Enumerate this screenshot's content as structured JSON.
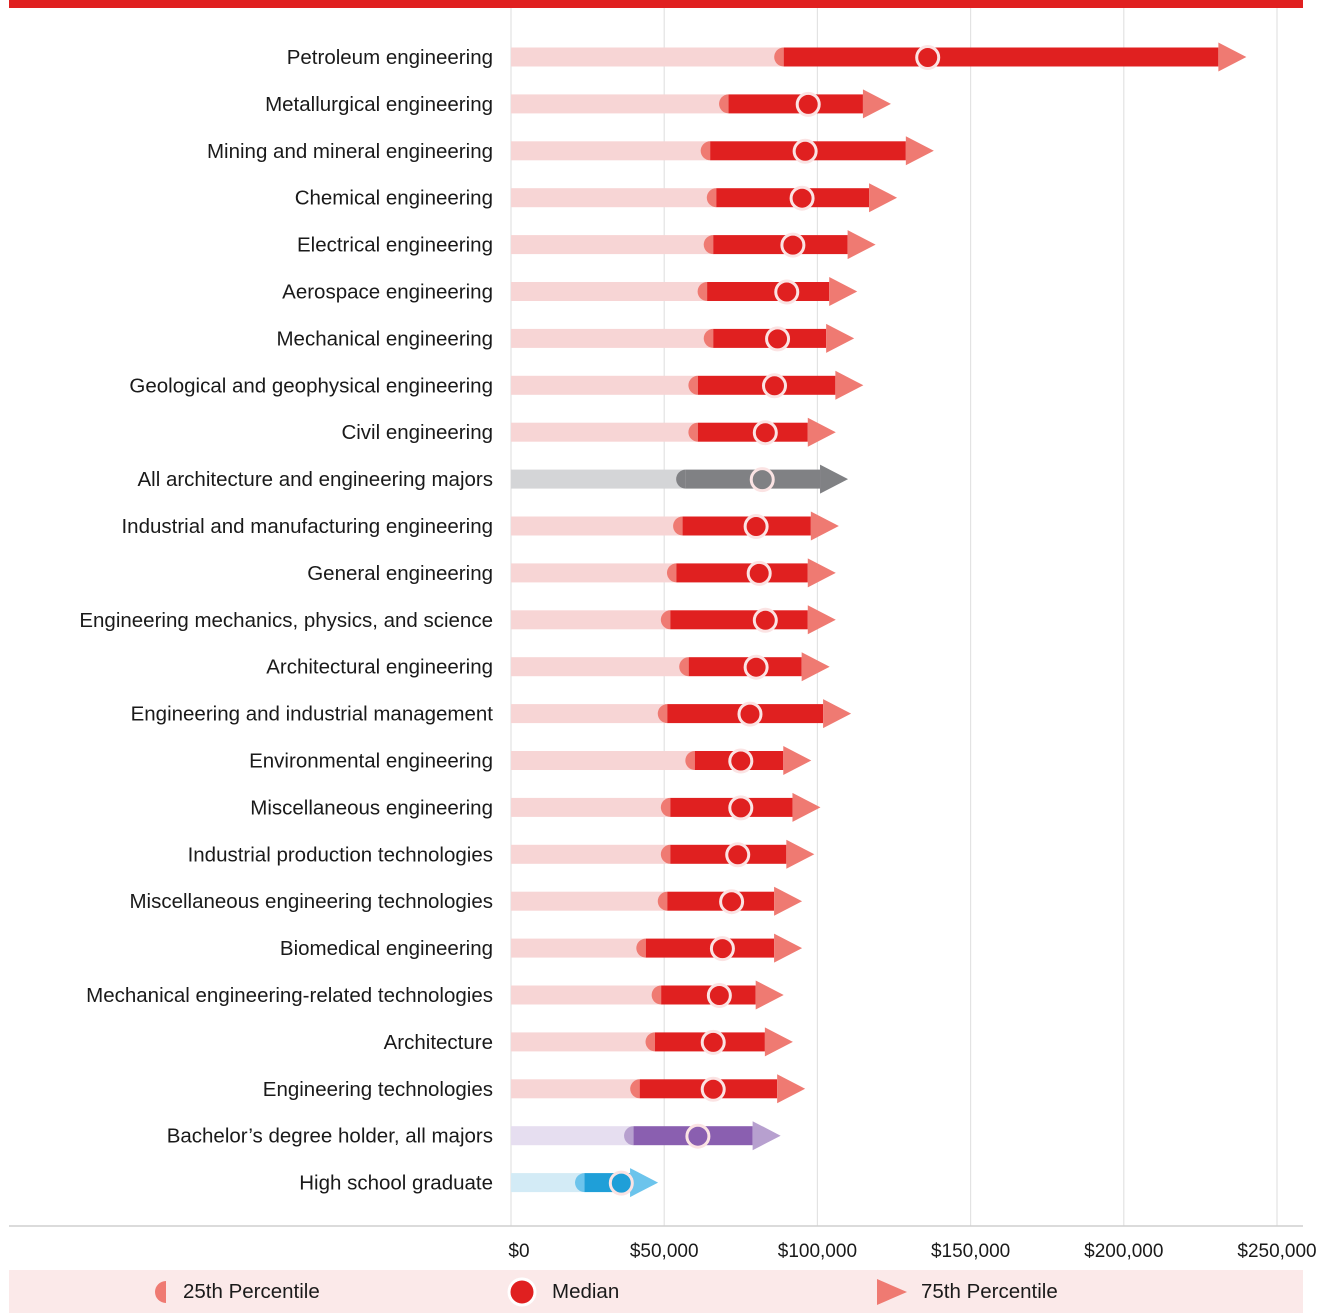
{
  "chart_data": {
    "type": "range-bar",
    "categories": [
      "Petroleum engineering",
      "Metallurgical engineering",
      "Mining and mineral engineering",
      "Chemical engineering",
      "Electrical engineering",
      "Aerospace engineering",
      "Mechanical engineering",
      "Geological and geophysical engineering",
      "Civil engineering",
      "All architecture and engineering majors",
      "Industrial and manufacturing engineering",
      "General engineering",
      "Engineering mechanics, physics, and science",
      "Architectural engineering",
      "Engineering and industrial management",
      "Environmental engineering",
      "Miscellaneous engineering",
      "Industrial production technologies",
      "Miscellaneous engineering technologies",
      "Biomedical engineering",
      "Mechanical engineering-related technologies",
      "Architecture",
      "Engineering technologies",
      "Bachelor’s degree holder, all majors",
      "High school graduate"
    ],
    "series": [
      {
        "name": "25th Percentile",
        "values": [
          89000,
          71000,
          65000,
          67000,
          66000,
          64000,
          66000,
          61000,
          61000,
          57000,
          56000,
          54000,
          52000,
          58000,
          51000,
          60000,
          52000,
          52000,
          51000,
          44000,
          49000,
          47000,
          42000,
          40000,
          24000
        ]
      },
      {
        "name": "Median",
        "values": [
          136000,
          97000,
          96000,
          95000,
          92000,
          90000,
          87000,
          86000,
          83000,
          82000,
          80000,
          81000,
          83000,
          80000,
          78000,
          75000,
          75000,
          74000,
          72000,
          69000,
          68000,
          66000,
          66000,
          61000,
          36000
        ]
      },
      {
        "name": "75th Percentile",
        "values": [
          240000,
          124000,
          138000,
          126000,
          119000,
          113000,
          112000,
          115000,
          106000,
          110000,
          107000,
          106000,
          106000,
          104000,
          111000,
          98000,
          101000,
          99000,
          95000,
          95000,
          89000,
          92000,
          96000,
          88000,
          48000
        ]
      }
    ],
    "category_styles": {
      "All architecture and engineering majors": "gray",
      "Bachelor’s degree holder, all majors": "purple",
      "High school graduate": "blue"
    },
    "x_ticks": [
      "$0",
      "$50,000",
      "$100,000",
      "$150,000",
      "$200,000",
      "$250,000"
    ],
    "x_tick_values": [
      0,
      50000,
      100000,
      150000,
      200000,
      250000
    ],
    "xlim": [
      0,
      250000
    ],
    "grid": true,
    "legend_placement": "bottom",
    "colors": {
      "red_main": "#e02020",
      "red_light": "#f7d5d5",
      "red_mid": "#ef7a72",
      "gray_main": "#808184",
      "gray_light": "#d4d5d7",
      "purple_main": "#8a5fb0",
      "purple_light": "#e6def0",
      "purple_mid": "#b7a0cf",
      "blue_main": "#1f9fd8",
      "blue_light": "#d3ebf6",
      "blue_mid": "#6cc4ec",
      "legend_bg": "#fbe9e9"
    }
  },
  "legend": {
    "p25_label": "25th Percentile",
    "median_label": "Median",
    "p75_label": "75th Percentile"
  }
}
